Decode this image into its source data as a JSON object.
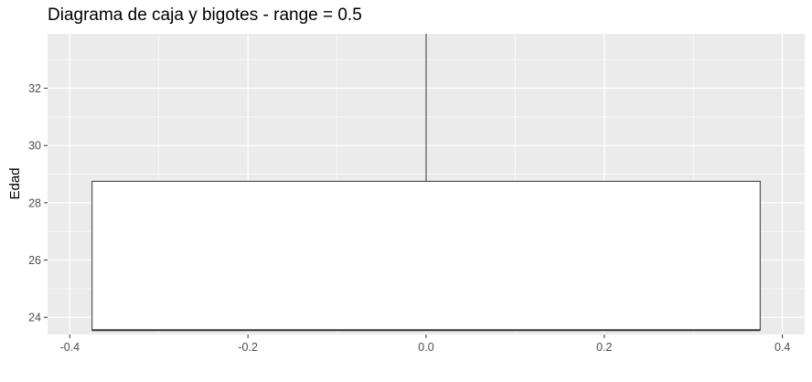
{
  "chart_data": {
    "type": "boxplot",
    "title": "Diagrama de caja y bigotes - range = 0.5",
    "xlabel": "",
    "ylabel": "Edad",
    "xlim": [
      -0.425,
      0.425
    ],
    "ylim": [
      23.4,
      33.9
    ],
    "x_ticks": [
      -0.4,
      -0.2,
      0.0,
      0.2,
      0.4
    ],
    "x_tick_labels": [
      "-0.4",
      "-0.2",
      "0.0",
      "0.2",
      "0.4"
    ],
    "y_ticks": [
      24,
      26,
      28,
      30,
      32
    ],
    "y_tick_labels": [
      "24",
      "26",
      "28",
      "30",
      "32"
    ],
    "box": {
      "x_center": 0.0,
      "x_left": -0.375,
      "x_right": 0.375,
      "q1": 23.55,
      "median": 23.55,
      "q3": 28.75,
      "whisker_low": 23.55,
      "whisker_high": 34.0
    },
    "grid": true,
    "panel_background": "#ebebeb",
    "grid_color": "#ffffff",
    "box_fill": "#ffffff",
    "box_stroke": "#333333"
  }
}
